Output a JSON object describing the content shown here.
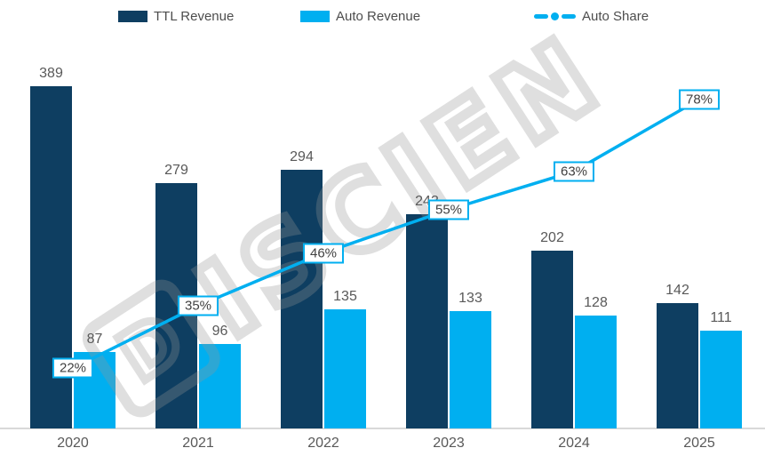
{
  "colors": {
    "ttl_bar": "#0e3e61",
    "auto_bar": "#00aff0",
    "share_line": "#00aff0",
    "value_text": "#595959",
    "axis_line": "#d9d9d9",
    "pct_box_border": "#00aff0",
    "pct_box_bg": "#ffffff",
    "pct_text": "#404040",
    "watermark": "#e8e8e8"
  },
  "watermark": {
    "text": "DISCIEN"
  },
  "chart_data": {
    "type": "bar",
    "subtype": "grouped-bars-with-line",
    "categories": [
      "2020",
      "2021",
      "2022",
      "2023",
      "2024",
      "2025"
    ],
    "series": [
      {
        "name": "TTL Revenue",
        "type": "bar",
        "color": "#0e3e61",
        "values": [
          389,
          279,
          294,
          243,
          202,
          142
        ]
      },
      {
        "name": "Auto Revenue",
        "type": "bar",
        "color": "#00aff0",
        "values": [
          87,
          96,
          135,
          133,
          128,
          111
        ]
      },
      {
        "name": "Auto Share",
        "type": "line",
        "color": "#00aff0",
        "values_pct": [
          22,
          35,
          46,
          55,
          63,
          78
        ],
        "labels": [
          "22%",
          "35%",
          "46%",
          "55%",
          "63%",
          "78%"
        ]
      }
    ],
    "title": "",
    "xlabel": "",
    "ylabel": "",
    "value_axis_hidden": true,
    "grid": false,
    "legend_position": "top",
    "value_labels": true
  }
}
